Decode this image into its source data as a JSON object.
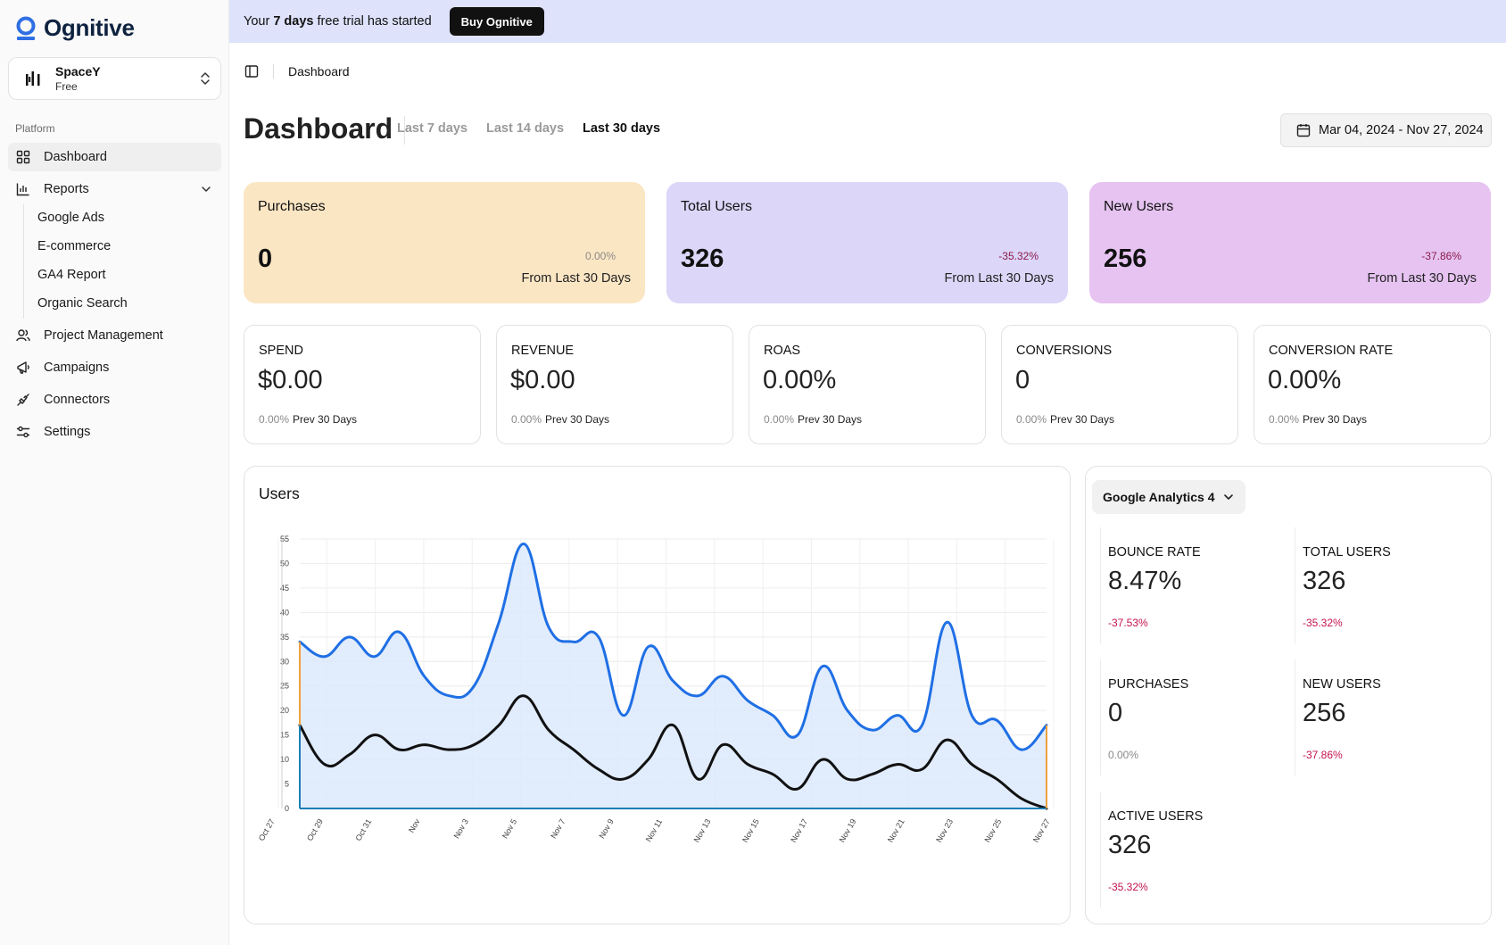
{
  "brand": {
    "name": "Ognitive",
    "accent": "#2f6fe4"
  },
  "team": {
    "name": "SpaceY",
    "plan": "Free"
  },
  "sidebar": {
    "section_label": "Platform",
    "items": [
      {
        "label": "Dashboard",
        "icon": "dashboard-grid-icon",
        "active": true
      },
      {
        "label": "Reports",
        "icon": "bar-chart-icon",
        "expanded": true
      },
      {
        "label": "Project Management",
        "icon": "users-icon"
      },
      {
        "label": "Campaigns",
        "icon": "megaphone-icon"
      },
      {
        "label": "Connectors",
        "icon": "plug-icon"
      },
      {
        "label": "Settings",
        "icon": "sliders-icon"
      }
    ],
    "report_subitems": [
      "Google Ads",
      "E-commerce",
      "GA4 Report",
      "Organic Search"
    ]
  },
  "banner": {
    "prefix": "Your ",
    "bold": "7 days",
    "suffix": " free trial has started",
    "button": "Buy Ognitive"
  },
  "breadcrumb": "Dashboard",
  "page_title": "Dashboard",
  "ranges": [
    {
      "label": "Last 7 days",
      "active": false
    },
    {
      "label": "Last 14 days",
      "active": false
    },
    {
      "label": "Last 30 days",
      "active": true
    }
  ],
  "date_range": "Mar 04, 2024 - Nov 27, 2024",
  "kpis": [
    {
      "title": "Purchases",
      "value": "0",
      "delta": "0.00%",
      "sub": "From Last 30 Days",
      "bg": "#fbe6c4",
      "delta_color": "#8a8a8a"
    },
    {
      "title": "Total Users",
      "value": "326",
      "delta": "-35.32%",
      "sub": "From Last 30 Days",
      "bg": "#dcd6f8",
      "delta_color": "#8b1a4a"
    },
    {
      "title": "New Users",
      "value": "256",
      "delta": "-37.86%",
      "sub": "From Last 30 Days",
      "bg": "#e6c3f1",
      "delta_color": "#8b1a4a"
    }
  ],
  "metrics": [
    {
      "label": "SPEND",
      "value": "$0.00",
      "pct": "0.00%",
      "foot": "Prev 30 Days"
    },
    {
      "label": "REVENUE",
      "value": "$0.00",
      "pct": "0.00%",
      "foot": "Prev 30 Days"
    },
    {
      "label": "ROAS",
      "value": "0.00%",
      "pct": "0.00%",
      "foot": "Prev 30 Days"
    },
    {
      "label": "CONVERSIONS",
      "value": "0",
      "pct": "0.00%",
      "foot": "Prev 30 Days"
    },
    {
      "label": "CONVERSION RATE",
      "value": "0.00%",
      "pct": "0.00%",
      "foot": "Prev 30 Days"
    }
  ],
  "users_card_title": "Users",
  "chart_data": {
    "type": "area",
    "title": "Users",
    "ylim": [
      0,
      55
    ],
    "yticks": [
      0,
      5,
      10,
      15,
      20,
      25,
      30,
      35,
      40,
      45,
      50,
      55
    ],
    "x_tick_labels": [
      "Oct 27",
      "Oct 29",
      "Oct 31",
      "Nov",
      "Nov 3",
      "Nov 5",
      "Nov 7",
      "Nov 9",
      "Nov 11",
      "Nov 13",
      "Nov 15",
      "Nov 17",
      "Nov 19",
      "Nov 21",
      "Nov 23",
      "Nov 25",
      "Nov 27"
    ],
    "x": [
      "Oct 28",
      "Oct 29",
      "Oct 30",
      "Oct 31",
      "Nov 1",
      "Nov 2",
      "Nov 3",
      "Nov 4",
      "Nov 5",
      "Nov 6",
      "Nov 7",
      "Nov 8",
      "Nov 9",
      "Nov 10",
      "Nov 11",
      "Nov 12",
      "Nov 13",
      "Nov 14",
      "Nov 15",
      "Nov 16",
      "Nov 17",
      "Nov 18",
      "Nov 19",
      "Nov 20",
      "Nov 21",
      "Nov 22",
      "Nov 23",
      "Nov 24",
      "Nov 25",
      "Nov 26",
      "Nov 27"
    ],
    "grid": true,
    "series": [
      {
        "color": "#1f6fe5",
        "fill": "#dce9fb",
        "values": [
          34,
          31,
          35,
          31,
          36,
          27,
          23,
          25,
          38,
          54,
          37,
          34,
          35,
          19,
          33,
          26,
          23,
          27,
          22,
          19,
          15,
          29,
          20,
          16,
          19,
          17,
          38,
          19,
          18,
          12,
          17
        ]
      },
      {
        "color": "#111111",
        "fill": "",
        "values": [
          17,
          9,
          11,
          15,
          12,
          13,
          12,
          13,
          17,
          23,
          16,
          12,
          8,
          6,
          10,
          17,
          6,
          13,
          9,
          7,
          4,
          10,
          6,
          7,
          9,
          8,
          14,
          9,
          6,
          2,
          0
        ]
      }
    ]
  },
  "ga_dropdown": "Google Analytics 4",
  "ga_stats": [
    {
      "label": "BOUNCE RATE",
      "value": "8.47%",
      "delta": "-37.53%",
      "delta_color": "#c4124f"
    },
    {
      "label": "TOTAL USERS",
      "value": "326",
      "delta": "-35.32%",
      "delta_color": "#c4124f"
    },
    {
      "label": "PURCHASES",
      "value": "0",
      "delta": "0.00%",
      "delta_color": "#8a8a8a"
    },
    {
      "label": "NEW USERS",
      "value": "256",
      "delta": "-37.86%",
      "delta_color": "#c4124f"
    },
    {
      "label": "ACTIVE USERS",
      "value": "326",
      "delta": "-35.32%",
      "delta_color": "#c4124f"
    }
  ]
}
